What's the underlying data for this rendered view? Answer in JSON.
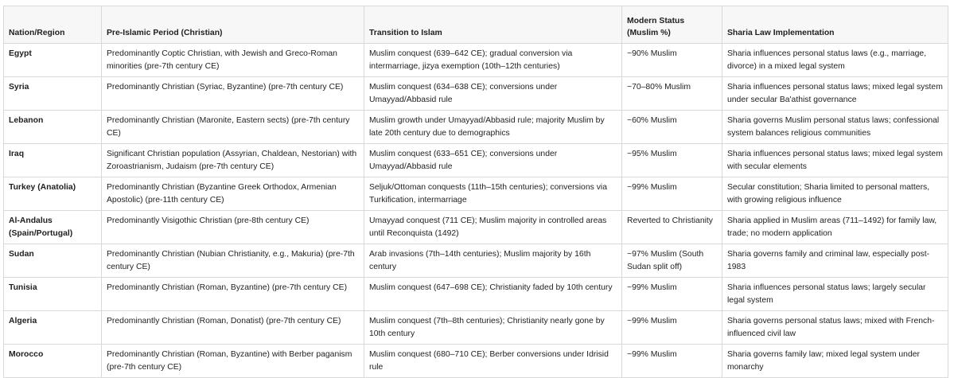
{
  "table": {
    "headers": [
      "Nation/Region",
      "Pre-Islamic Period (Christian)",
      "Transition to Islam",
      "Modern Status (Muslim %)",
      "Sharia Law Implementation"
    ],
    "rows": [
      [
        "Egypt",
        "Predominantly Coptic Christian, with Jewish and Greco-Roman minorities (pre-7th century CE)",
        "Muslim conquest (639–642 CE); gradual conversion via intermarriage, jizya exemption (10th–12th centuries)",
        "~90% Muslim",
        "Sharia influences personal status laws (e.g., marriage, divorce) in a mixed legal system"
      ],
      [
        "Syria",
        "Predominantly Christian (Syriac, Byzantine) (pre-7th century CE)",
        "Muslim conquest (634–638 CE); conversions under Umayyad/Abbasid rule",
        "~70–80% Muslim",
        "Sharia influences personal status laws; mixed legal system under secular Ba'athist governance"
      ],
      [
        "Lebanon",
        "Predominantly Christian (Maronite, Eastern sects) (pre-7th century CE)",
        "Muslim growth under Umayyad/Abbasid rule; majority Muslim by late 20th century due to demographics",
        "~60% Muslim",
        "Sharia governs Muslim personal status laws; confessional system balances religious communities"
      ],
      [
        "Iraq",
        "Significant Christian population (Assyrian, Chaldean, Nestorian) with Zoroastrianism, Judaism (pre-7th century CE)",
        "Muslim conquest (633–651 CE); conversions under Umayyad/Abbasid rule",
        "~95% Muslim",
        "Sharia influences personal status laws; mixed legal system with secular elements"
      ],
      [
        "Turkey (Anatolia)",
        "Predominantly Christian (Byzantine Greek Orthodox, Armenian Apostolic) (pre-11th century CE)",
        "Seljuk/Ottoman conquests (11th–15th centuries); conversions via Turkification, intermarriage",
        "~99% Muslim",
        "Secular constitution; Sharia limited to personal matters, with growing religious influence"
      ],
      [
        "Al-Andalus (Spain/Portugal)",
        "Predominantly Visigothic Christian (pre-8th century CE)",
        "Umayyad conquest (711 CE); Muslim majority in controlled areas until Reconquista (1492)",
        "Reverted to Christianity",
        "Sharia applied in Muslim areas (711–1492) for family law, trade; no modern application"
      ],
      [
        "Sudan",
        "Predominantly Christian (Nubian Christianity, e.g., Makuria) (pre-7th century CE)",
        "Arab invasions (7th–14th centuries); Muslim majority by 16th century",
        "~97% Muslim (South Sudan split off)",
        "Sharia governs family and criminal law, especially post-1983"
      ],
      [
        "Tunisia",
        "Predominantly Christian (Roman, Byzantine) (pre-7th century CE)",
        "Muslim conquest (647–698 CE); Christianity faded by 10th century",
        "~99% Muslim",
        "Sharia influences personal status laws; largely secular legal system"
      ],
      [
        "Algeria",
        "Predominantly Christian (Roman, Donatist) (pre-7th century CE)",
        "Muslim conquest (7th–8th centuries); Christianity nearly gone by 10th century",
        "~99% Muslim",
        "Sharia governs personal status laws; mixed with French-influenced civil law"
      ],
      [
        "Morocco",
        "Predominantly Christian (Roman, Byzantine) with Berber paganism (pre-7th century CE)",
        "Muslim conquest (680–710 CE); Berber conversions under Idrisid rule",
        "~99% Muslim",
        "Sharia governs family law; mixed legal system under monarchy"
      ]
    ]
  }
}
